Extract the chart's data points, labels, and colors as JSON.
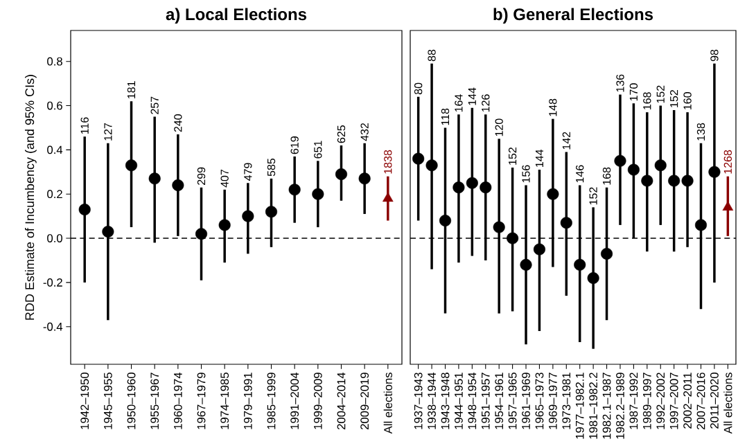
{
  "chart_data": [
    {
      "type": "scatter",
      "title": "a) Local Elections",
      "ylabel": "RDD Estimate of Incumbency (and 95% CIs)",
      "categories": [
        "1942–1950",
        "1945–1955",
        "1950–1960",
        "1955–1967",
        "1960–1974",
        "1967–1979",
        "1974–1985",
        "1979–1991",
        "1985–1999",
        "1991–2004",
        "1999–2009",
        "2004–2014",
        "2009–2019",
        "All elections"
      ],
      "ylim": [
        -0.57,
        0.94
      ],
      "yticks": [
        -0.4,
        -0.2,
        {
          "value": 0,
          "label": "0.0"
        },
        0.2,
        0.4,
        0.6,
        0.8
      ],
      "ref_lines": [
        {
          "axis": "y",
          "value": 0,
          "line_style": "dashed",
          "color": "#000000"
        }
      ],
      "series": [
        {
          "color": "#000000",
          "marker": "circle",
          "values": [
            0.13,
            0.03,
            0.33,
            0.27,
            0.24,
            0.02,
            0.06,
            0.1,
            0.12,
            0.22,
            0.2,
            0.29,
            0.27,
            null
          ],
          "errors": [
            [
              -0.2,
              0.46
            ],
            [
              -0.37,
              0.43
            ],
            [
              0.05,
              0.62
            ],
            [
              -0.02,
              0.55
            ],
            [
              0.01,
              0.47
            ],
            [
              -0.19,
              0.23
            ],
            [
              -0.11,
              0.22
            ],
            [
              -0.07,
              0.25
            ],
            [
              -0.04,
              0.27
            ],
            [
              0.07,
              0.37
            ],
            [
              0.05,
              0.35
            ],
            [
              0.17,
              0.42
            ],
            [
              0.11,
              0.43
            ],
            null
          ]
        },
        {
          "color": "#8b0000",
          "marker": "triangle",
          "values": [
            null,
            null,
            null,
            null,
            null,
            null,
            null,
            null,
            null,
            null,
            null,
            null,
            null,
            0.18
          ],
          "errors": [
            null,
            null,
            null,
            null,
            null,
            null,
            null,
            null,
            null,
            null,
            null,
            null,
            null,
            [
              0.08,
              0.28
            ]
          ]
        }
      ],
      "annotations": [
        {
          "text": "116",
          "x": "1942–1950",
          "y": 0.46
        },
        {
          "text": "127",
          "x": "1945–1955",
          "y": 0.43
        },
        {
          "text": "181",
          "x": "1950–1960",
          "y": 0.62
        },
        {
          "text": "257",
          "x": "1955–1967",
          "y": 0.55
        },
        {
          "text": "240",
          "x": "1960–1974",
          "y": 0.47
        },
        {
          "text": "299",
          "x": "1967–1979",
          "y": 0.23
        },
        {
          "text": "407",
          "x": "1974–1985",
          "y": 0.22
        },
        {
          "text": "479",
          "x": "1979–1991",
          "y": 0.25
        },
        {
          "text": "585",
          "x": "1985–1999",
          "y": 0.27
        },
        {
          "text": "619",
          "x": "1991–2004",
          "y": 0.37
        },
        {
          "text": "651",
          "x": "1999–2009",
          "y": 0.35
        },
        {
          "text": "625",
          "x": "2004–2014",
          "y": 0.42
        },
        {
          "text": "432",
          "x": "2009–2019",
          "y": 0.43
        },
        {
          "text": "1838",
          "x": "All elections",
          "y": 0.28
        }
      ]
    },
    {
      "type": "scatter",
      "title": "b) General Elections",
      "tick_labels": "x",
      "categories": [
        "1937–1943",
        "1938–1944",
        "1943–1948",
        "1944–1951",
        "1948–1954",
        "1951–1957",
        "1954–1961",
        "1957–1965",
        "1961–1969",
        "1965–1973",
        "1969–1977",
        "1973–1981",
        "1977–1982.1",
        "1981–1982.2",
        "1982.1–1987",
        "1982.2–1989",
        "1987–1992",
        "1989–1997",
        "1992–2002",
        "1997–2007",
        "2002–2011",
        "2007–2016",
        "2011–2020",
        "All elections"
      ],
      "ylim": [
        -0.57,
        0.94
      ],
      "ref_lines": [
        {
          "axis": "y",
          "value": 0,
          "line_style": "dashed",
          "color": "#000000"
        }
      ],
      "series": [
        {
          "color": "#000000",
          "marker": "circle",
          "values": [
            0.36,
            0.33,
            0.08,
            0.23,
            0.25,
            0.23,
            0.05,
            0,
            -0.12,
            -0.05,
            0.2,
            0.07,
            -0.12,
            -0.18,
            -0.07,
            0.35,
            0.31,
            0.26,
            0.33,
            0.26,
            0.26,
            0.06,
            0.3,
            null
          ],
          "errors": [
            [
              0.08,
              0.64
            ],
            [
              -0.14,
              0.79
            ],
            [
              -0.34,
              0.5
            ],
            [
              -0.11,
              0.56
            ],
            [
              -0.08,
              0.59
            ],
            [
              -0.1,
              0.56
            ],
            [
              -0.34,
              0.45
            ],
            [
              -0.33,
              0.32
            ],
            [
              -0.48,
              0.24
            ],
            [
              -0.42,
              0.31
            ],
            [
              -0.13,
              0.54
            ],
            [
              -0.26,
              0.39
            ],
            [
              -0.47,
              0.24
            ],
            [
              -0.5,
              0.14
            ],
            [
              -0.37,
              0.23
            ],
            [
              0.06,
              0.65
            ],
            [
              0,
              0.61
            ],
            [
              -0.06,
              0.57
            ],
            [
              0.06,
              0.6
            ],
            [
              -0.06,
              0.58
            ],
            [
              -0.04,
              0.57
            ],
            [
              -0.32,
              0.43
            ],
            [
              -0.2,
              0.79
            ],
            null
          ]
        },
        {
          "color": "#8b0000",
          "marker": "triangle",
          "values": [
            null,
            null,
            null,
            null,
            null,
            null,
            null,
            null,
            null,
            null,
            null,
            null,
            null,
            null,
            null,
            null,
            null,
            null,
            null,
            null,
            null,
            null,
            null,
            0.14
          ],
          "errors": [
            null,
            null,
            null,
            null,
            null,
            null,
            null,
            null,
            null,
            null,
            null,
            null,
            null,
            null,
            null,
            null,
            null,
            null,
            null,
            null,
            null,
            null,
            null,
            [
              0.01,
              0.28
            ]
          ]
        }
      ],
      "annotations": [
        {
          "text": "80",
          "x": "1937–1943",
          "y": 0.64
        },
        {
          "text": "88",
          "x": "1938–1944",
          "y": 0.79
        },
        {
          "text": "118",
          "x": "1943–1948",
          "y": 0.5
        },
        {
          "text": "164",
          "x": "1944–1951",
          "y": 0.56
        },
        {
          "text": "144",
          "x": "1948–1954",
          "y": 0.59
        },
        {
          "text": "126",
          "x": "1951–1957",
          "y": 0.56
        },
        {
          "text": "120",
          "x": "1954–1961",
          "y": 0.45
        },
        {
          "text": "152",
          "x": "1957–1965",
          "y": 0.32
        },
        {
          "text": "156",
          "x": "1961–1969",
          "y": 0.24
        },
        {
          "text": "144",
          "x": "1965–1973",
          "y": 0.31
        },
        {
          "text": "148",
          "x": "1969–1977",
          "y": 0.54
        },
        {
          "text": "142",
          "x": "1973–1981",
          "y": 0.39
        },
        {
          "text": "146",
          "x": "1977–1982.1",
          "y": 0.24
        },
        {
          "text": "152",
          "x": "1981–1982.2",
          "y": 0.14
        },
        {
          "text": "168",
          "x": "1982.1–1987",
          "y": 0.23
        },
        {
          "text": "136",
          "x": "1982.2–1989",
          "y": 0.65
        },
        {
          "text": "170",
          "x": "1987–1992",
          "y": 0.61
        },
        {
          "text": "168",
          "x": "1989–1997",
          "y": 0.57
        },
        {
          "text": "152",
          "x": "1992–2002",
          "y": 0.6
        },
        {
          "text": "152",
          "x": "1997–2007",
          "y": 0.58
        },
        {
          "text": "160",
          "x": "2002–2011",
          "y": 0.57
        },
        {
          "text": "138",
          "x": "2007–2016",
          "y": 0.43
        },
        {
          "text": "98",
          "x": "2011–2020",
          "y": 0.79
        },
        {
          "text": "1268",
          "x": "All elections",
          "y": 0.28
        }
      ]
    }
  ]
}
